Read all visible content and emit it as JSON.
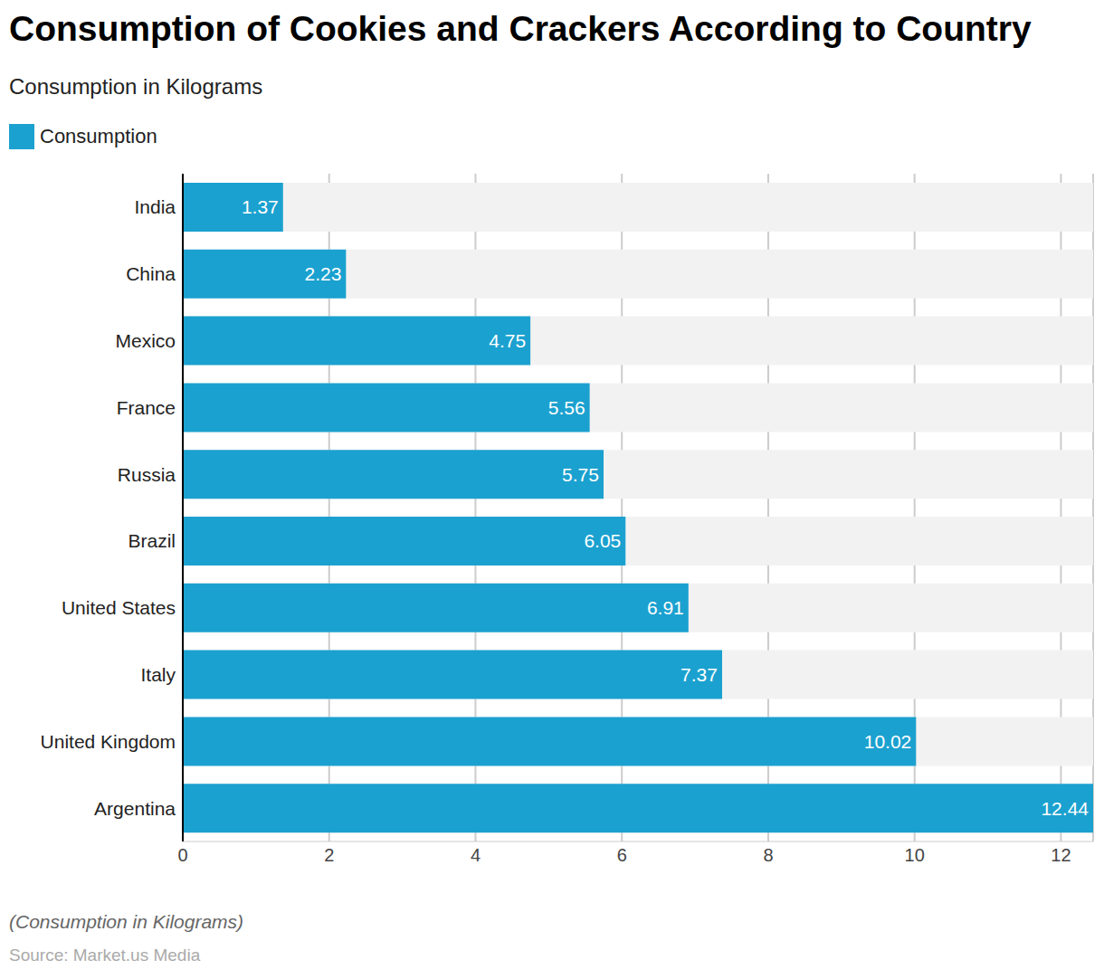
{
  "chart_data": {
    "type": "bar",
    "title": "Consumption of Cookies and Crackers According to Country",
    "subtitle": "Consumption in Kilograms",
    "orientation": "horizontal",
    "categories": [
      "India",
      "China",
      "Mexico",
      "France",
      "Russia",
      "Brazil",
      "United States",
      "Italy",
      "United Kingdom",
      "Argentina"
    ],
    "series": [
      {
        "name": "Consumption",
        "color": "#1ba1cf",
        "values": [
          1.37,
          2.23,
          4.75,
          5.56,
          5.75,
          6.05,
          6.91,
          7.37,
          10.02,
          12.44
        ]
      }
    ],
    "xlim": [
      0,
      12.44
    ],
    "xticks": [
      0,
      2,
      4,
      6,
      8,
      10,
      12
    ],
    "grid": true,
    "data_labels": true,
    "legend": "top left",
    "footnote": "(Consumption in Kilograms)",
    "source": "Source: Market.us Media"
  }
}
